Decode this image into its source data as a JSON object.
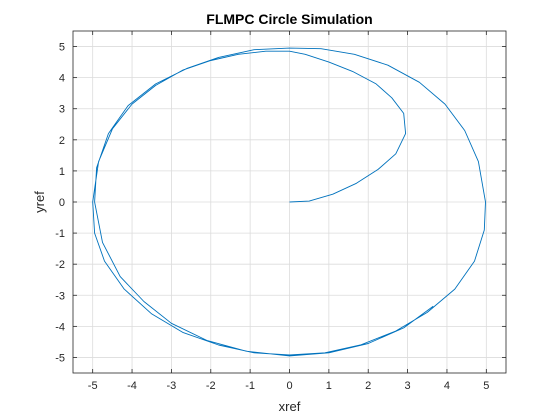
{
  "chart_data": {
    "type": "line",
    "title": "FLMPC Circle Simulation",
    "xlabel": "xref",
    "ylabel": "yref",
    "xlim": [
      -5.5,
      5.5
    ],
    "ylim": [
      -5.5,
      5.5
    ],
    "xticks": [
      -5,
      -4,
      -3,
      -2,
      -1,
      0,
      1,
      2,
      3,
      4,
      5
    ],
    "yticks": [
      -5,
      -4,
      -3,
      -2,
      -1,
      0,
      1,
      2,
      3,
      4,
      5
    ],
    "grid": true,
    "line_color": "#0072BD",
    "series": [
      {
        "x": [
          0,
          0.5,
          1.1,
          1.7,
          2.25,
          2.7,
          2.95,
          2.9,
          2.6,
          2.2,
          1.6,
          1.0,
          0.4,
          0.0,
          -0.6,
          -1.3,
          -2.0,
          -2.7,
          -3.4,
          -4.0,
          -4.5,
          -4.85,
          -5.0,
          -4.95,
          -4.7,
          -4.2,
          -3.5,
          -2.7,
          -1.8,
          -0.9,
          0.0,
          0.9,
          1.8,
          2.7,
          3.5,
          4.2,
          4.7,
          4.95,
          4.98,
          4.8,
          4.45,
          3.95,
          3.3,
          2.5,
          1.65,
          0.8,
          0.0,
          -0.9,
          -1.8,
          -2.6,
          -3.4,
          -4.1,
          -4.6,
          -4.9,
          -4.95,
          -4.75,
          -4.3,
          -3.7,
          -3.0,
          -2.1,
          -1.1,
          0.0,
          1.0,
          2.0,
          2.9,
          3.65
        ],
        "y": [
          0,
          0.03,
          0.25,
          0.6,
          1.05,
          1.55,
          2.2,
          2.85,
          3.35,
          3.8,
          4.2,
          4.5,
          4.75,
          4.85,
          4.85,
          4.75,
          4.55,
          4.25,
          3.75,
          3.15,
          2.35,
          1.3,
          0.0,
          -1.0,
          -1.9,
          -2.8,
          -3.6,
          -4.2,
          -4.6,
          -4.85,
          -4.92,
          -4.85,
          -4.6,
          -4.15,
          -3.55,
          -2.8,
          -1.9,
          -0.9,
          0.0,
          1.3,
          2.3,
          3.15,
          3.85,
          4.4,
          4.75,
          4.93,
          4.95,
          4.9,
          4.65,
          4.3,
          3.8,
          3.1,
          2.2,
          1.1,
          0.0,
          -1.3,
          -2.4,
          -3.2,
          -3.9,
          -4.45,
          -4.8,
          -4.95,
          -4.85,
          -4.55,
          -4.05,
          -3.35
        ]
      }
    ]
  }
}
